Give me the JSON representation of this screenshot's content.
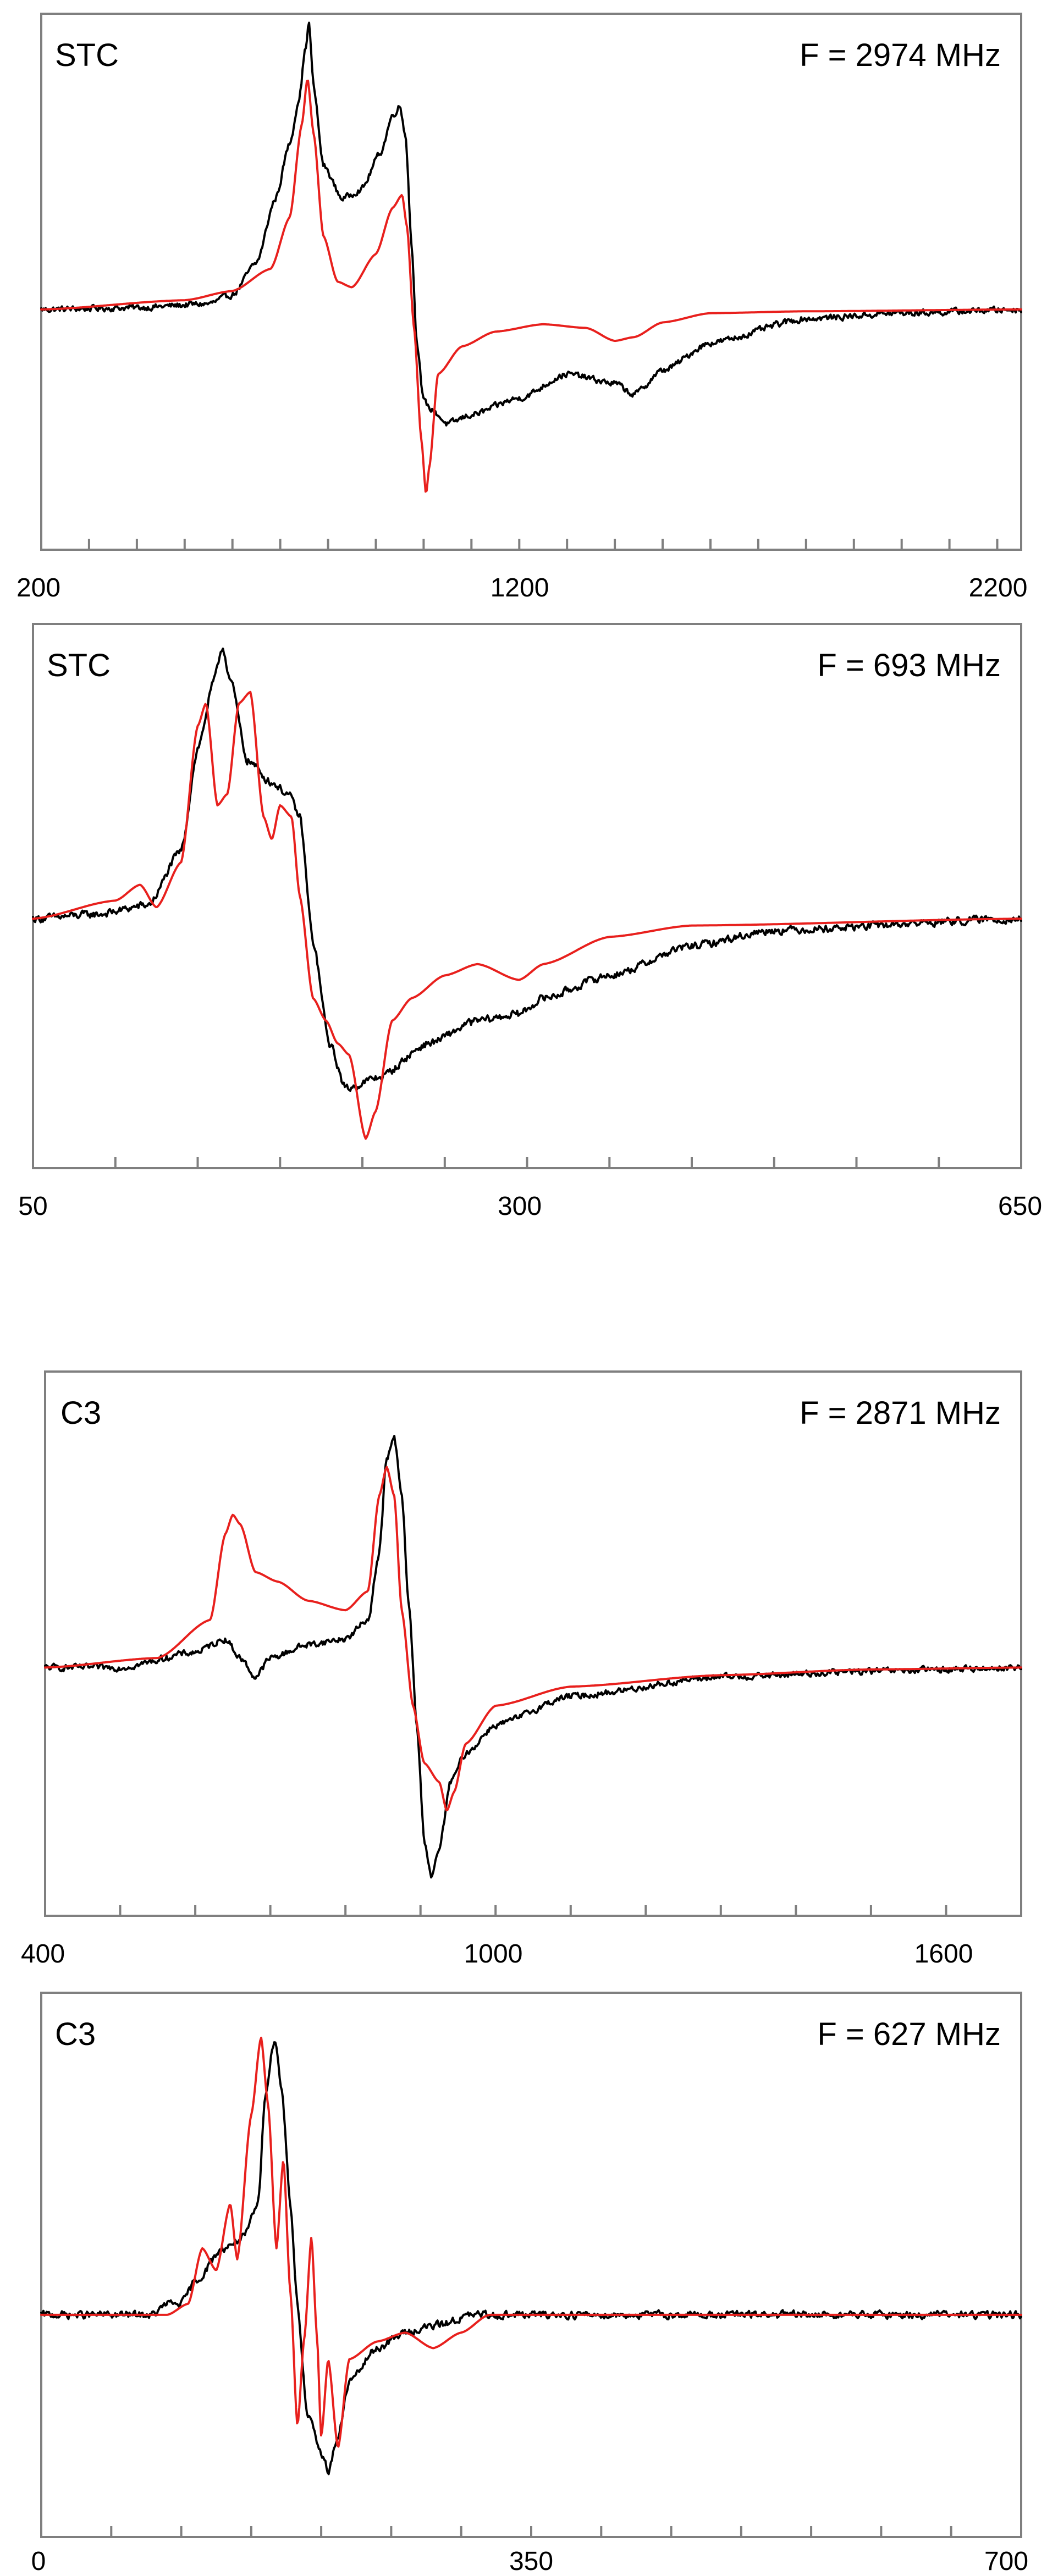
{
  "chart_data": [
    {
      "type": "line",
      "sample": "STC",
      "frequency": "F = 2974 MHz",
      "xlim": [
        200,
        2250
      ],
      "ylim": [
        -1.3,
        1.6
      ],
      "tick_step": 100,
      "tick_labels": [
        "200",
        "1200",
        "2200"
      ],
      "grid": false,
      "series": [
        {
          "key": "experimental",
          "color": "#000000",
          "noise": 0.012,
          "points": [
            [
              200,
              0
            ],
            [
              400,
              0.01
            ],
            [
              550,
              0.03
            ],
            [
              600,
              0.08
            ],
            [
              650,
              0.25
            ],
            [
              690,
              0.6
            ],
            [
              720,
              0.9
            ],
            [
              740,
              1.15
            ],
            [
              752,
              1.4
            ],
            [
              760,
              1.55
            ],
            [
              770,
              1.2
            ],
            [
              790,
              0.78
            ],
            [
              830,
              0.6
            ],
            [
              870,
              0.65
            ],
            [
              910,
              0.85
            ],
            [
              935,
              1.05
            ],
            [
              950,
              1.1
            ],
            [
              962,
              0.95
            ],
            [
              975,
              0.35
            ],
            [
              985,
              -0.15
            ],
            [
              1000,
              -0.5
            ],
            [
              1020,
              -0.55
            ],
            [
              1050,
              -0.62
            ],
            [
              1100,
              -0.57
            ],
            [
              1200,
              -0.48
            ],
            [
              1300,
              -0.35
            ],
            [
              1400,
              -0.4
            ],
            [
              1440,
              -0.46
            ],
            [
              1500,
              -0.33
            ],
            [
              1600,
              -0.18
            ],
            [
              1800,
              -0.05
            ],
            [
              2000,
              -0.02
            ],
            [
              2250,
              0
            ]
          ]
        },
        {
          "key": "simulated",
          "color": "#e8201d",
          "noise": 0,
          "points": [
            [
              200,
              0
            ],
            [
              500,
              0.05
            ],
            [
              600,
              0.1
            ],
            [
              680,
              0.22
            ],
            [
              720,
              0.5
            ],
            [
              745,
              1.0
            ],
            [
              757,
              1.25
            ],
            [
              770,
              0.95
            ],
            [
              790,
              0.4
            ],
            [
              820,
              0.15
            ],
            [
              850,
              0.12
            ],
            [
              900,
              0.3
            ],
            [
              935,
              0.55
            ],
            [
              955,
              0.62
            ],
            [
              965,
              0.45
            ],
            [
              980,
              -0.1
            ],
            [
              995,
              -0.7
            ],
            [
              1005,
              -1.0
            ],
            [
              1012,
              -0.85
            ],
            [
              1030,
              -0.35
            ],
            [
              1080,
              -0.2
            ],
            [
              1150,
              -0.12
            ],
            [
              1250,
              -0.08
            ],
            [
              1340,
              -0.1
            ],
            [
              1400,
              -0.17
            ],
            [
              1440,
              -0.15
            ],
            [
              1500,
              -0.07
            ],
            [
              1600,
              -0.02
            ],
            [
              1800,
              -0.01
            ],
            [
              2250,
              0
            ]
          ]
        }
      ]
    },
    {
      "type": "line",
      "sample": "STC",
      "frequency": "F = 693 MHz",
      "xlim": [
        50,
        650
      ],
      "ylim": [
        -1.1,
        1.3
      ],
      "tick_step": 50,
      "tick_labels": [
        "50",
        "300",
        "650"
      ],
      "grid": false,
      "series": [
        {
          "key": "experimental",
          "color": "#000000",
          "noise": 0.012,
          "points": [
            [
              50,
              0
            ],
            [
              90,
              0.02
            ],
            [
              120,
              0.06
            ],
            [
              140,
              0.3
            ],
            [
              150,
              0.75
            ],
            [
              160,
              1.05
            ],
            [
              165,
              1.2
            ],
            [
              170,
              1.05
            ],
            [
              180,
              0.7
            ],
            [
              195,
              0.6
            ],
            [
              205,
              0.55
            ],
            [
              212,
              0.45
            ],
            [
              220,
              -0.1
            ],
            [
              230,
              -0.55
            ],
            [
              240,
              -0.75
            ],
            [
              260,
              -0.7
            ],
            [
              290,
              -0.55
            ],
            [
              320,
              -0.45
            ],
            [
              345,
              -0.42
            ],
            [
              360,
              -0.35
            ],
            [
              400,
              -0.25
            ],
            [
              450,
              -0.12
            ],
            [
              500,
              -0.05
            ],
            [
              650,
              0
            ]
          ]
        },
        {
          "key": "simulated",
          "color": "#e8201d",
          "noise": 0,
          "points": [
            [
              50,
              0
            ],
            [
              100,
              0.08
            ],
            [
              115,
              0.15
            ],
            [
              125,
              0.05
            ],
            [
              140,
              0.25
            ],
            [
              150,
              0.85
            ],
            [
              155,
              0.95
            ],
            [
              162,
              0.5
            ],
            [
              168,
              0.55
            ],
            [
              175,
              0.95
            ],
            [
              182,
              1.0
            ],
            [
              190,
              0.45
            ],
            [
              195,
              0.35
            ],
            [
              200,
              0.5
            ],
            [
              207,
              0.45
            ],
            [
              212,
              0.1
            ],
            [
              220,
              -0.35
            ],
            [
              228,
              -0.45
            ],
            [
              235,
              -0.55
            ],
            [
              242,
              -0.6
            ],
            [
              252,
              -0.97
            ],
            [
              258,
              -0.85
            ],
            [
              268,
              -0.45
            ],
            [
              280,
              -0.35
            ],
            [
              300,
              -0.25
            ],
            [
              320,
              -0.2
            ],
            [
              345,
              -0.27
            ],
            [
              360,
              -0.2
            ],
            [
              400,
              -0.08
            ],
            [
              450,
              -0.03
            ],
            [
              650,
              0
            ]
          ]
        }
      ]
    },
    {
      "type": "line",
      "sample": "C3",
      "frequency": "F = 2871 MHz",
      "xlim": [
        400,
        1700
      ],
      "ylim": [
        -1.3,
        1.55
      ],
      "tick_step": 100,
      "tick_labels": [
        "400",
        "1000",
        "1600"
      ],
      "grid": false,
      "series": [
        {
          "key": "experimental",
          "color": "#000000",
          "noise": 0.012,
          "points": [
            [
              400,
              0
            ],
            [
              500,
              0
            ],
            [
              600,
              0.08
            ],
            [
              640,
              0.15
            ],
            [
              660,
              0.05
            ],
            [
              680,
              -0.05
            ],
            [
              700,
              0.05
            ],
            [
              750,
              0.12
            ],
            [
              800,
              0.15
            ],
            [
              830,
              0.25
            ],
            [
              845,
              0.6
            ],
            [
              855,
              1.1
            ],
            [
              865,
              1.2
            ],
            [
              875,
              0.9
            ],
            [
              885,
              0.3
            ],
            [
              895,
              -0.3
            ],
            [
              905,
              -0.9
            ],
            [
              915,
              -1.1
            ],
            [
              925,
              -0.95
            ],
            [
              940,
              -0.6
            ],
            [
              960,
              -0.45
            ],
            [
              1000,
              -0.3
            ],
            [
              1100,
              -0.15
            ],
            [
              1300,
              -0.05
            ],
            [
              1500,
              -0.02
            ],
            [
              1700,
              0
            ]
          ]
        },
        {
          "key": "simulated",
          "color": "#e8201d",
          "noise": 0,
          "points": [
            [
              400,
              0
            ],
            [
              550,
              0.05
            ],
            [
              620,
              0.25
            ],
            [
              640,
              0.7
            ],
            [
              650,
              0.8
            ],
            [
              660,
              0.75
            ],
            [
              680,
              0.5
            ],
            [
              710,
              0.45
            ],
            [
              750,
              0.35
            ],
            [
              800,
              0.3
            ],
            [
              830,
              0.4
            ],
            [
              845,
              0.9
            ],
            [
              855,
              1.05
            ],
            [
              865,
              0.9
            ],
            [
              875,
              0.3
            ],
            [
              890,
              -0.2
            ],
            [
              905,
              -0.5
            ],
            [
              925,
              -0.6
            ],
            [
              935,
              -0.75
            ],
            [
              945,
              -0.65
            ],
            [
              960,
              -0.4
            ],
            [
              1000,
              -0.2
            ],
            [
              1100,
              -0.1
            ],
            [
              1300,
              -0.04
            ],
            [
              1500,
              -0.01
            ],
            [
              1700,
              0
            ]
          ]
        }
      ]
    },
    {
      "type": "line",
      "sample": "C3",
      "frequency": "F = 627 MHz",
      "xlim": [
        0,
        700
      ],
      "ylim": [
        -1.0,
        1.45
      ],
      "tick_step": 50,
      "tick_labels": [
        "0",
        "350",
        "700"
      ],
      "grid": false,
      "series": [
        {
          "key": "experimental",
          "color": "#000000",
          "noise": 0.012,
          "points": [
            [
              0,
              0
            ],
            [
              80,
              0
            ],
            [
              90,
              0.05
            ],
            [
              100,
              0.05
            ],
            [
              110,
              0.15
            ],
            [
              130,
              0.3
            ],
            [
              145,
              0.35
            ],
            [
              155,
              0.5
            ],
            [
              160,
              1.0
            ],
            [
              167,
              1.25
            ],
            [
              172,
              1.0
            ],
            [
              178,
              0.5
            ],
            [
              183,
              0.05
            ],
            [
              190,
              -0.45
            ],
            [
              200,
              -0.62
            ],
            [
              205,
              -0.7
            ],
            [
              212,
              -0.55
            ],
            [
              220,
              -0.3
            ],
            [
              240,
              -0.15
            ],
            [
              260,
              -0.08
            ],
            [
              280,
              -0.05
            ],
            [
              310,
              0
            ],
            [
              700,
              0
            ]
          ]
        },
        {
          "key": "simulated",
          "color": "#e8201d",
          "noise": 0,
          "points": [
            [
              0,
              0
            ],
            [
              90,
              0
            ],
            [
              105,
              0.05
            ],
            [
              115,
              0.3
            ],
            [
              125,
              0.2
            ],
            [
              135,
              0.5
            ],
            [
              140,
              0.25
            ],
            [
              150,
              0.9
            ],
            [
              157,
              1.25
            ],
            [
              162,
              0.95
            ],
            [
              168,
              0.3
            ],
            [
              173,
              0.7
            ],
            [
              178,
              0.1
            ],
            [
              183,
              -0.5
            ],
            [
              188,
              -0.1
            ],
            [
              193,
              0.35
            ],
            [
              197,
              -0.1
            ],
            [
              200,
              -0.55
            ],
            [
              205,
              -0.2
            ],
            [
              212,
              -0.6
            ],
            [
              220,
              -0.2
            ],
            [
              240,
              -0.12
            ],
            [
              260,
              -0.08
            ],
            [
              280,
              -0.15
            ],
            [
              300,
              -0.08
            ],
            [
              320,
              0
            ],
            [
              700,
              0
            ]
          ]
        }
      ]
    }
  ]
}
